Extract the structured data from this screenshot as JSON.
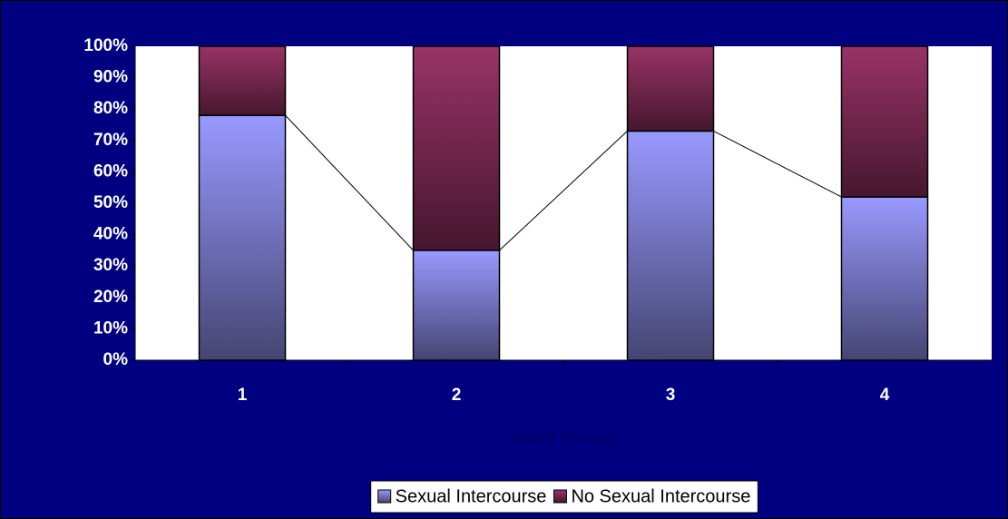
{
  "chart_data": {
    "type": "bar",
    "stacked": true,
    "x_label": "Race Group",
    "categories": [
      "1",
      "2",
      "3",
      "4"
    ],
    "series": [
      {
        "name": "Sexual Intercourse",
        "color": "#9999ff",
        "values": [
          78,
          35,
          73,
          52
        ]
      },
      {
        "name": "No Sexual Intercourse",
        "color": "#993366",
        "values": [
          22,
          65,
          27,
          48
        ]
      }
    ],
    "ylim": [
      0,
      100
    ],
    "yticks": [
      {
        "value": 0,
        "label": "0%"
      },
      {
        "value": 10,
        "label": "10%"
      },
      {
        "value": 20,
        "label": "20%"
      },
      {
        "value": 30,
        "label": "30%"
      },
      {
        "value": 40,
        "label": "40%"
      },
      {
        "value": 50,
        "label": "50%"
      },
      {
        "value": 60,
        "label": "60%"
      },
      {
        "value": 70,
        "label": "70%"
      },
      {
        "value": 80,
        "label": "80%"
      },
      {
        "value": 90,
        "label": "90%"
      },
      {
        "value": 100,
        "label": "100%"
      }
    ],
    "series_lines": true,
    "legend": "bottom"
  }
}
